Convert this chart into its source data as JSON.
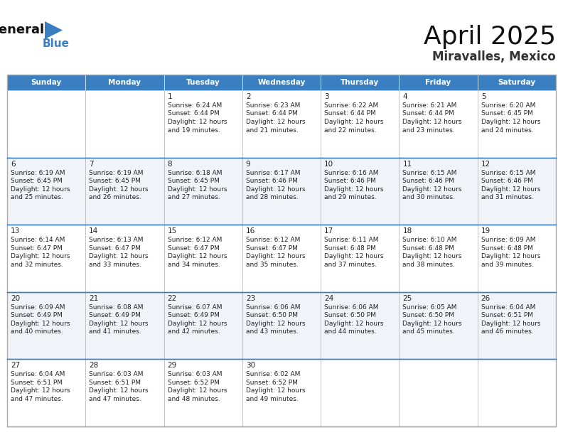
{
  "title": "April 2025",
  "subtitle": "Miravalles, Mexico",
  "header_color": "#3a7fc1",
  "header_text_color": "#ffffff",
  "border_color": "#aaaaaa",
  "border_color_dark": "#3a7fc1",
  "text_color": "#222222",
  "days_of_week": [
    "Sunday",
    "Monday",
    "Tuesday",
    "Wednesday",
    "Thursday",
    "Friday",
    "Saturday"
  ],
  "row_bg": [
    "#ffffff",
    "#f0f4f8"
  ],
  "calendar": [
    [
      null,
      null,
      {
        "day": 1,
        "sunrise": "6:24 AM",
        "sunset": "6:44 PM",
        "daylight": "12 hours and 19 minutes."
      },
      {
        "day": 2,
        "sunrise": "6:23 AM",
        "sunset": "6:44 PM",
        "daylight": "12 hours and 21 minutes."
      },
      {
        "day": 3,
        "sunrise": "6:22 AM",
        "sunset": "6:44 PM",
        "daylight": "12 hours and 22 minutes."
      },
      {
        "day": 4,
        "sunrise": "6:21 AM",
        "sunset": "6:44 PM",
        "daylight": "12 hours and 23 minutes."
      },
      {
        "day": 5,
        "sunrise": "6:20 AM",
        "sunset": "6:45 PM",
        "daylight": "12 hours and 24 minutes."
      }
    ],
    [
      {
        "day": 6,
        "sunrise": "6:19 AM",
        "sunset": "6:45 PM",
        "daylight": "12 hours and 25 minutes."
      },
      {
        "day": 7,
        "sunrise": "6:19 AM",
        "sunset": "6:45 PM",
        "daylight": "12 hours and 26 minutes."
      },
      {
        "day": 8,
        "sunrise": "6:18 AM",
        "sunset": "6:45 PM",
        "daylight": "12 hours and 27 minutes."
      },
      {
        "day": 9,
        "sunrise": "6:17 AM",
        "sunset": "6:46 PM",
        "daylight": "12 hours and 28 minutes."
      },
      {
        "day": 10,
        "sunrise": "6:16 AM",
        "sunset": "6:46 PM",
        "daylight": "12 hours and 29 minutes."
      },
      {
        "day": 11,
        "sunrise": "6:15 AM",
        "sunset": "6:46 PM",
        "daylight": "12 hours and 30 minutes."
      },
      {
        "day": 12,
        "sunrise": "6:15 AM",
        "sunset": "6:46 PM",
        "daylight": "12 hours and 31 minutes."
      }
    ],
    [
      {
        "day": 13,
        "sunrise": "6:14 AM",
        "sunset": "6:47 PM",
        "daylight": "12 hours and 32 minutes."
      },
      {
        "day": 14,
        "sunrise": "6:13 AM",
        "sunset": "6:47 PM",
        "daylight": "12 hours and 33 minutes."
      },
      {
        "day": 15,
        "sunrise": "6:12 AM",
        "sunset": "6:47 PM",
        "daylight": "12 hours and 34 minutes."
      },
      {
        "day": 16,
        "sunrise": "6:12 AM",
        "sunset": "6:47 PM",
        "daylight": "12 hours and 35 minutes."
      },
      {
        "day": 17,
        "sunrise": "6:11 AM",
        "sunset": "6:48 PM",
        "daylight": "12 hours and 37 minutes."
      },
      {
        "day": 18,
        "sunrise": "6:10 AM",
        "sunset": "6:48 PM",
        "daylight": "12 hours and 38 minutes."
      },
      {
        "day": 19,
        "sunrise": "6:09 AM",
        "sunset": "6:48 PM",
        "daylight": "12 hours and 39 minutes."
      }
    ],
    [
      {
        "day": 20,
        "sunrise": "6:09 AM",
        "sunset": "6:49 PM",
        "daylight": "12 hours and 40 minutes."
      },
      {
        "day": 21,
        "sunrise": "6:08 AM",
        "sunset": "6:49 PM",
        "daylight": "12 hours and 41 minutes."
      },
      {
        "day": 22,
        "sunrise": "6:07 AM",
        "sunset": "6:49 PM",
        "daylight": "12 hours and 42 minutes."
      },
      {
        "day": 23,
        "sunrise": "6:06 AM",
        "sunset": "6:50 PM",
        "daylight": "12 hours and 43 minutes."
      },
      {
        "day": 24,
        "sunrise": "6:06 AM",
        "sunset": "6:50 PM",
        "daylight": "12 hours and 44 minutes."
      },
      {
        "day": 25,
        "sunrise": "6:05 AM",
        "sunset": "6:50 PM",
        "daylight": "12 hours and 45 minutes."
      },
      {
        "day": 26,
        "sunrise": "6:04 AM",
        "sunset": "6:51 PM",
        "daylight": "12 hours and 46 minutes."
      }
    ],
    [
      {
        "day": 27,
        "sunrise": "6:04 AM",
        "sunset": "6:51 PM",
        "daylight": "12 hours and 47 minutes."
      },
      {
        "day": 28,
        "sunrise": "6:03 AM",
        "sunset": "6:51 PM",
        "daylight": "12 hours and 47 minutes."
      },
      {
        "day": 29,
        "sunrise": "6:03 AM",
        "sunset": "6:52 PM",
        "daylight": "12 hours and 48 minutes."
      },
      {
        "day": 30,
        "sunrise": "6:02 AM",
        "sunset": "6:52 PM",
        "daylight": "12 hours and 49 minutes."
      },
      null,
      null,
      null
    ]
  ]
}
